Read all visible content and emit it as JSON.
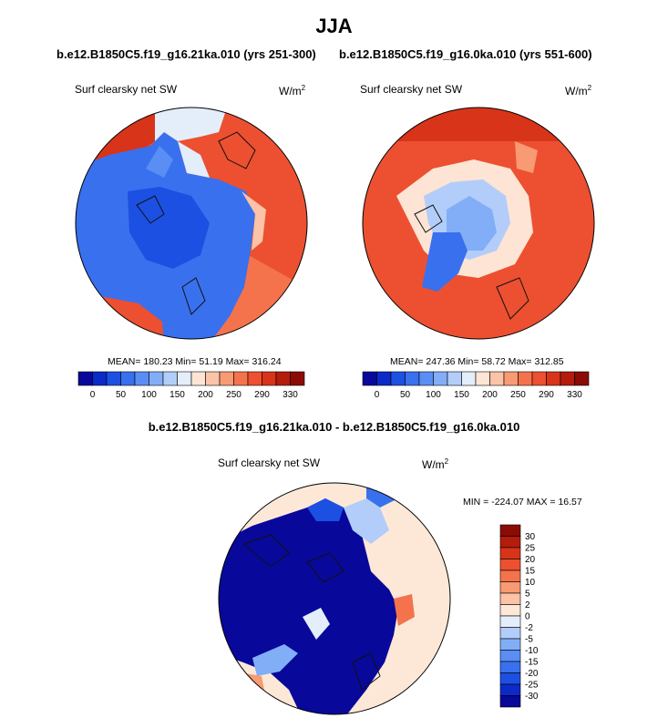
{
  "season_title": "JJA",
  "diff_title": "b.e12.B1850C5.f19_g16.21ka.010 - b.e12.B1850C5.f19_g16.0ka.010",
  "chart_data": [
    {
      "type": "heatmap",
      "projection": "north-polar-stereographic",
      "run_title": "b.e12.B1850C5.f19_g16.21ka.010 (yrs 251-300)",
      "variable": "Surf clearsky net SW",
      "units_base": "W/m",
      "units_exp": "2",
      "stats": {
        "mean": "180.23",
        "min": "51.19",
        "max": "316.24"
      },
      "stats_text": "MEAN= 180.23  Min=  51.19  Max= 316.24",
      "colorbar": {
        "orientation": "horizontal",
        "levels": [
          0,
          25,
          50,
          75,
          100,
          125,
          150,
          175,
          200,
          225,
          250,
          270,
          290,
          310,
          330
        ],
        "tick_labels": [
          "0",
          "50",
          "100",
          "150",
          "200",
          "250",
          "290",
          "330"
        ],
        "colors": [
          "#08089a",
          "#0c2ac8",
          "#1c50e2",
          "#3970ee",
          "#5a8ef4",
          "#82aef7",
          "#b2cdf9",
          "#e4eefb",
          "#fde4d4",
          "#fbc3a7",
          "#f89a73",
          "#f4734c",
          "#ec5030",
          "#d8341a",
          "#b41c0c",
          "#8a0c04"
        ]
      }
    },
    {
      "type": "heatmap",
      "projection": "north-polar-stereographic",
      "run_title": "b.e12.B1850C5.f19_g16.0ka.010 (yrs 551-600)",
      "variable": "Surf clearsky net SW",
      "units_base": "W/m",
      "units_exp": "2",
      "stats": {
        "mean": "247.36",
        "min": "58.72",
        "max": "312.85"
      },
      "stats_text": "MEAN= 247.36  Min=  58.72  Max= 312.85",
      "colorbar": {
        "orientation": "horizontal",
        "levels": [
          0,
          25,
          50,
          75,
          100,
          125,
          150,
          175,
          200,
          225,
          250,
          270,
          290,
          310,
          330
        ],
        "tick_labels": [
          "0",
          "50",
          "100",
          "150",
          "200",
          "250",
          "290",
          "330"
        ],
        "colors": [
          "#08089a",
          "#0c2ac8",
          "#1c50e2",
          "#3970ee",
          "#5a8ef4",
          "#82aef7",
          "#b2cdf9",
          "#e4eefb",
          "#fde4d4",
          "#fbc3a7",
          "#f89a73",
          "#f4734c",
          "#ec5030",
          "#d8341a",
          "#b41c0c",
          "#8a0c04"
        ]
      }
    },
    {
      "type": "heatmap",
      "projection": "north-polar-stereographic",
      "variable": "Surf clearsky net SW",
      "units_base": "W/m",
      "units_exp": "2",
      "stats": {
        "min": "-224.07",
        "max": "16.57"
      },
      "stats_text": "MIN = -224.07 MAX =  16.57",
      "colorbar": {
        "orientation": "vertical",
        "levels": [
          30,
          25,
          20,
          15,
          10,
          5,
          2,
          0,
          -2,
          -5,
          -10,
          -15,
          -20,
          -25,
          -30
        ],
        "tick_labels": [
          "30",
          "25",
          "20",
          "15",
          "10",
          "5",
          "2",
          "0",
          "-2",
          "-5",
          "-10",
          "-15",
          "-20",
          "-25",
          "-30"
        ],
        "colors": [
          "#8a0c04",
          "#b41c0c",
          "#d8341a",
          "#ec5030",
          "#f4734c",
          "#f89a73",
          "#fbc3a7",
          "#fde8d8",
          "#e4eefb",
          "#b2cdf9",
          "#82aef7",
          "#5a8ef4",
          "#3970ee",
          "#1c50e2",
          "#0c2ac8",
          "#08089a"
        ]
      }
    }
  ]
}
